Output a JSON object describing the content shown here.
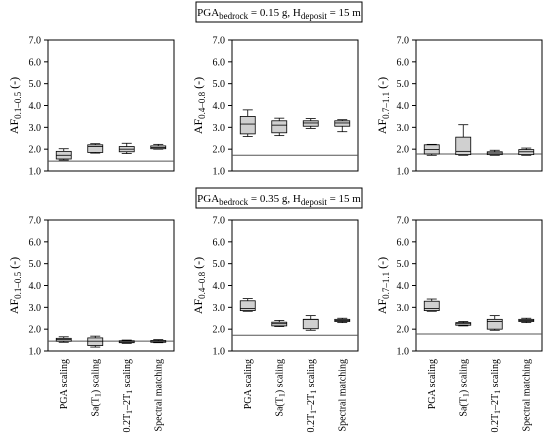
{
  "figure": {
    "row_titles": [
      {
        "prefix": "PGA",
        "sub1": "bedrock",
        "mid": " = 0.15 g, H",
        "sub2": "deposit",
        "suffix": " = 15 m"
      },
      {
        "prefix": "PGA",
        "sub1": "bedrock",
        "mid": " = 0.35 g, H",
        "sub2": "deposit",
        "suffix": " = 15 m"
      }
    ]
  },
  "chart_data": [
    {
      "type": "box",
      "row": 0,
      "col": 0,
      "ylabel": {
        "main": "AF",
        "sub": "0.1–0.5",
        "unit": " (-)"
      },
      "ylim": [
        1.0,
        7.0
      ],
      "yticks": [
        "1.0",
        "2.0",
        "3.0",
        "4.0",
        "5.0",
        "6.0",
        "7.0"
      ],
      "reference_line": 1.45,
      "categories": [
        "PGA scaling",
        "Sa(T1) scaling",
        "0.2T1–2T1 scaling",
        "Spectral matching"
      ],
      "boxes": [
        {
          "min": 1.5,
          "q1": 1.55,
          "median": 1.72,
          "q3": 1.9,
          "max": 2.02
        },
        {
          "min": 1.82,
          "q1": 1.85,
          "median": 2.12,
          "q3": 2.2,
          "max": 2.25
        },
        {
          "min": 1.8,
          "q1": 1.88,
          "median": 2.0,
          "q3": 2.12,
          "max": 2.27
        },
        {
          "min": 2.0,
          "q1": 2.02,
          "median": 2.08,
          "q3": 2.15,
          "max": 2.22
        }
      ]
    },
    {
      "type": "box",
      "row": 0,
      "col": 1,
      "ylabel": {
        "main": "AF",
        "sub": "0.4–0.8",
        "unit": " (-)"
      },
      "ylim": [
        1.0,
        7.0
      ],
      "yticks": [
        "1.0",
        "2.0",
        "3.0",
        "4.0",
        "5.0",
        "6.0",
        "7.0"
      ],
      "reference_line": 1.72,
      "categories": [
        "PGA scaling",
        "Sa(T1) scaling",
        "0.2T1–2T1 scaling",
        "Spectral matching"
      ],
      "boxes": [
        {
          "min": 2.58,
          "q1": 2.7,
          "median": 3.15,
          "q3": 3.5,
          "max": 3.8
        },
        {
          "min": 2.62,
          "q1": 2.75,
          "median": 3.1,
          "q3": 3.3,
          "max": 3.42
        },
        {
          "min": 2.95,
          "q1": 3.05,
          "median": 3.2,
          "q3": 3.3,
          "max": 3.4
        },
        {
          "min": 2.8,
          "q1": 3.05,
          "median": 3.2,
          "q3": 3.3,
          "max": 3.35
        }
      ]
    },
    {
      "type": "box",
      "row": 0,
      "col": 2,
      "ylabel": {
        "main": "AF",
        "sub": "0.7–1.1",
        "unit": " (-)"
      },
      "ylim": [
        1.0,
        7.0
      ],
      "yticks": [
        "1.0",
        "2.0",
        "3.0",
        "4.0",
        "5.0",
        "6.0",
        "7.0"
      ],
      "reference_line": 1.78,
      "categories": [
        "PGA scaling",
        "Sa(T1) scaling",
        "0.2T1–2T1 scaling",
        "Spectral matching"
      ],
      "boxes": [
        {
          "min": 1.72,
          "q1": 1.78,
          "median": 1.98,
          "q3": 2.2,
          "max": 2.22
        },
        {
          "min": 1.72,
          "q1": 1.75,
          "median": 1.9,
          "q3": 2.55,
          "max": 3.12
        },
        {
          "min": 1.72,
          "q1": 1.75,
          "median": 1.82,
          "q3": 1.88,
          "max": 1.95
        },
        {
          "min": 1.72,
          "q1": 1.75,
          "median": 1.88,
          "q3": 1.98,
          "max": 2.05
        }
      ]
    },
    {
      "type": "box",
      "row": 1,
      "col": 0,
      "ylabel": {
        "main": "AF",
        "sub": "0.1–0.5",
        "unit": " (-)"
      },
      "ylim": [
        1.0,
        7.0
      ],
      "yticks": [
        "1.0",
        "2.0",
        "3.0",
        "4.0",
        "5.0",
        "6.0",
        "7.0"
      ],
      "reference_line": 1.45,
      "categories": [
        "PGA scaling",
        "Sa(T1) scaling",
        "0.2T1–2T1 scaling",
        "Spectral matching"
      ],
      "boxes": [
        {
          "min": 1.4,
          "q1": 1.45,
          "median": 1.52,
          "q3": 1.58,
          "max": 1.65
        },
        {
          "min": 1.18,
          "q1": 1.25,
          "median": 1.45,
          "q3": 1.6,
          "max": 1.68
        },
        {
          "min": 1.35,
          "q1": 1.38,
          "median": 1.42,
          "q3": 1.47,
          "max": 1.5
        },
        {
          "min": 1.38,
          "q1": 1.4,
          "median": 1.45,
          "q3": 1.48,
          "max": 1.52
        }
      ]
    },
    {
      "type": "box",
      "row": 1,
      "col": 1,
      "ylabel": {
        "main": "AF",
        "sub": "0.4–0.8",
        "unit": " (-)"
      },
      "ylim": [
        1.0,
        7.0
      ],
      "yticks": [
        "1.0",
        "2.0",
        "3.0",
        "4.0",
        "5.0",
        "6.0",
        "7.0"
      ],
      "reference_line": 1.72,
      "categories": [
        "PGA scaling",
        "Sa(T1) scaling",
        "0.2T1–2T1 scaling",
        "Spectral matching"
      ],
      "boxes": [
        {
          "min": 2.82,
          "q1": 2.85,
          "median": 2.95,
          "q3": 3.3,
          "max": 3.4
        },
        {
          "min": 2.12,
          "q1": 2.15,
          "median": 2.25,
          "q3": 2.32,
          "max": 2.4
        },
        {
          "min": 1.95,
          "q1": 2.02,
          "median": 2.45,
          "q3": 2.45,
          "max": 2.62
        },
        {
          "min": 2.3,
          "q1": 2.35,
          "median": 2.4,
          "q3": 2.45,
          "max": 2.5
        }
      ]
    },
    {
      "type": "box",
      "row": 1,
      "col": 2,
      "ylabel": {
        "main": "AF",
        "sub": "0.7–1.1",
        "unit": " (-)"
      },
      "ylim": [
        1.0,
        7.0
      ],
      "yticks": [
        "1.0",
        "2.0",
        "3.0",
        "4.0",
        "5.0",
        "6.0",
        "7.0"
      ],
      "reference_line": 1.78,
      "categories": [
        "PGA scaling",
        "Sa(T1) scaling",
        "0.2T1–2T1 scaling",
        "Spectral matching"
      ],
      "boxes": [
        {
          "min": 2.82,
          "q1": 2.85,
          "median": 2.95,
          "q3": 3.28,
          "max": 3.38
        },
        {
          "min": 2.15,
          "q1": 2.18,
          "median": 2.25,
          "q3": 2.3,
          "max": 2.35
        },
        {
          "min": 1.95,
          "q1": 2.0,
          "median": 2.35,
          "q3": 2.45,
          "max": 2.62
        },
        {
          "min": 2.3,
          "q1": 2.35,
          "median": 2.4,
          "q3": 2.45,
          "max": 2.5
        }
      ]
    }
  ],
  "x_labels": [
    {
      "text": "PGA scaling"
    },
    {
      "main": "Sa(T",
      "sub": "1",
      "suffix": ") scaling"
    },
    {
      "a": "0.2T",
      "s1": "1",
      "b": "–2T",
      "s2": "1",
      "c": " scaling"
    },
    {
      "text": "Spectral matching"
    }
  ],
  "colors": {
    "box_fill": "#d0d0d0",
    "stroke": "#000000",
    "reference_line": "#555555"
  }
}
